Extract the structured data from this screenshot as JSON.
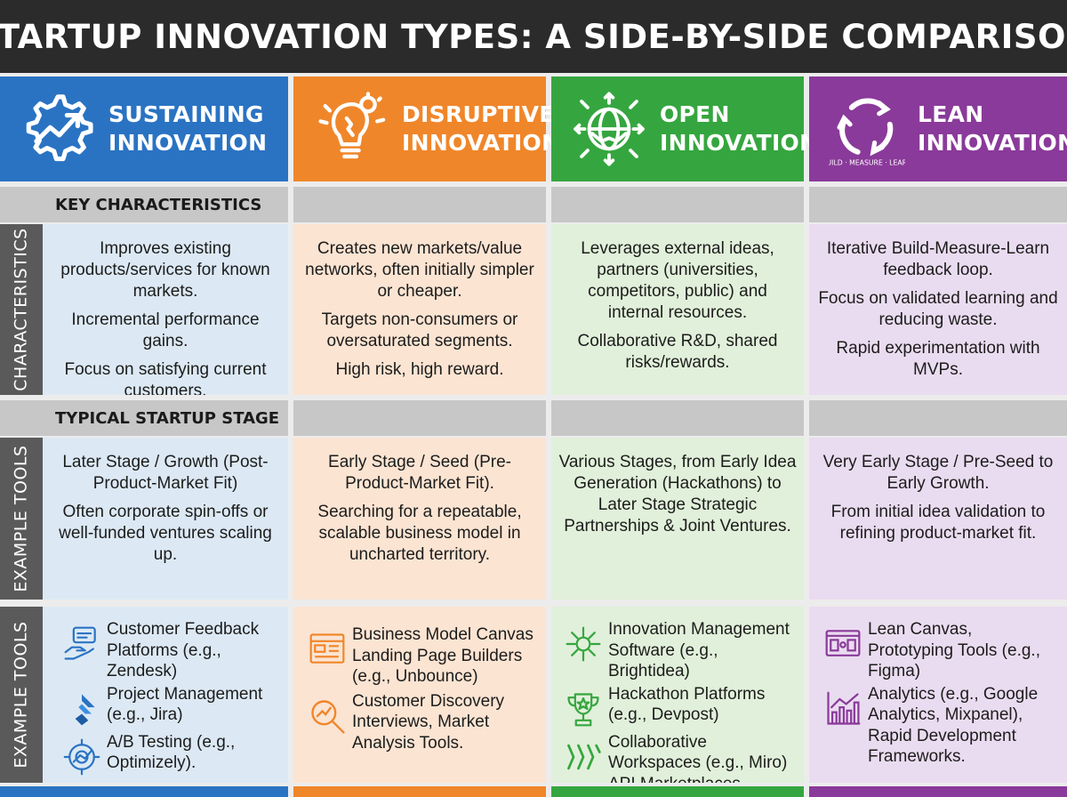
{
  "title": "STARTUP INNOVATION TYPES: A SIDE-BY-SIDE COMPARISON",
  "colors": {
    "sustaining": "#2a73c3",
    "disruptive": "#f0862a",
    "open": "#35a63f",
    "lean": "#8a3a9a",
    "sustaining_light": "#dce9f4",
    "disruptive_light": "#fbe4d2",
    "open_light": "#e1f0da",
    "lean_light": "#eadcf0"
  },
  "columns": [
    {
      "key": "sustaining",
      "title_line1": "SUSTAINING",
      "title_line2": "INNOVATION",
      "icon": "gear-growth-arrow-icon",
      "characteristics": [
        "Improves existing products/services for known markets.",
        "Incremental performance gains.",
        "Focus on satisfying current customers."
      ],
      "stage": [
        "Later Stage / Growth (Post-Product-Market Fit)",
        "Often corporate spin-offs or well-funded ventures scaling up."
      ],
      "tools": [
        {
          "icon": "feedback-hand-icon",
          "text": "Customer Feedback Platforms (e.g., Zendesk)"
        },
        {
          "icon": "jira-icon",
          "text": "Project Management (e.g., Jira)"
        },
        {
          "icon": "ab-testing-gear-icon",
          "text": "A/B Testing (e.g., Optimizely)."
        }
      ]
    },
    {
      "key": "disruptive",
      "title_line1": "DISRUPTIVE",
      "title_line2": "INNOVATION",
      "icon": "lightbulb-icon",
      "characteristics": [
        "Creates new markets/value networks, often initially simpler or cheaper.",
        "Targets non-consumers or oversaturated segments.",
        "High risk, high reward."
      ],
      "stage": [
        "Early Stage / Seed (Pre-Product-Market Fit).",
        "Searching for a repeatable, scalable business model in uncharted territory."
      ],
      "tools": [
        {
          "icon": "canvas-icon",
          "text": "Business Model Canvas"
        },
        {
          "icon": "",
          "text": "Landing Page Builders (e.g., Unbounce)"
        },
        {
          "icon": "magnifier-chart-icon",
          "text": "Customer Discovery Interviews, Market Analysis Tools."
        }
      ]
    },
    {
      "key": "open",
      "title_line1": "OPEN",
      "title_line2": "INNOVATION",
      "icon": "handshake-globe-icon",
      "characteristics": [
        "Leverages external ideas, partners (universities, competitors, public) and internal resources.",
        "Collaborative R&D, shared risks/rewards."
      ],
      "stage": [
        "Various Stages, from Early Idea Generation (Hackathons) to Later Stage Strategic Partnerships & Joint Ventures."
      ],
      "tools": [
        {
          "icon": "network-arrows-icon",
          "text": "Innovation Management Software (e.g., Brightidea)"
        },
        {
          "icon": "trophy-icon",
          "text": "Hackathon Platforms (e.g., Devpost)"
        },
        {
          "icon": "miro-icon",
          "text": "Collaborative Workspaces (e.g., Miro) API Marketplaces."
        }
      ]
    },
    {
      "key": "lean",
      "title_line1": "LEAN",
      "title_line2": "INNOVATION",
      "icon": "build-measure-learn-cycle-icon",
      "icon_ring_text": "BUILD · MEASURE · LEARN",
      "characteristics": [
        "Iterative Build-Measure-Learn feedback loop.",
        "Focus on validated learning and reducing waste.",
        "Rapid experimentation with MVPs."
      ],
      "stage": [
        "Very Early Stage / Pre-Seed to Early Growth.",
        "From initial idea validation to refining product-market fit."
      ],
      "tools": [
        {
          "icon": "lean-canvas-icon",
          "text": "Lean Canvas, Prototyping Tools (e.g., Figma)"
        },
        {
          "icon": "analytics-chart-icon",
          "text": "Analytics (e.g., Google Analytics, Mixpanel), Rapid Development Frameworks."
        }
      ]
    }
  ],
  "sections": {
    "characteristics_band": "KEY CHARACTERISTICS",
    "stage_band": "TYPICAL STARTUP STAGE"
  },
  "side_tabs": {
    "characteristics": "CHARACTERISTICS",
    "stage": "EXAMPLE TOOLS",
    "tools": "EXAMPLE TOOLS"
  }
}
